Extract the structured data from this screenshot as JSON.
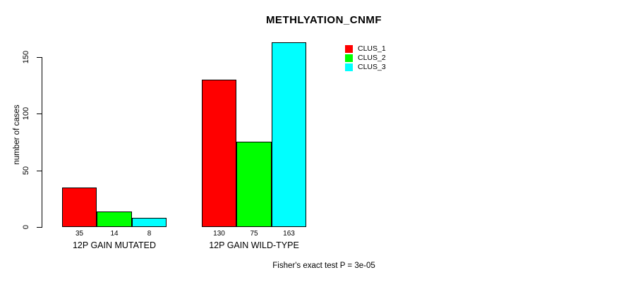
{
  "title": "METHLYATION_CNMF",
  "footnote": "Fisher's exact test P = 3e-05",
  "colors": {
    "clus1": "#FF0000",
    "clus2": "#00FF00",
    "clus3": "#00FFFF",
    "axis": "#000000",
    "background": "#FFFFFF"
  },
  "chart_data": {
    "type": "bar",
    "title": "METHLYATION_CNMF",
    "xlabel": "",
    "ylabel": "number of cases",
    "ylim": [
      0,
      163
    ],
    "yticks": [
      0,
      50,
      100,
      150
    ],
    "grid": false,
    "categories": [
      "12P GAIN MUTATED",
      "12P GAIN WILD-TYPE"
    ],
    "series": [
      {
        "name": "CLUS_1",
        "color": "#FF0000",
        "values": [
          35,
          130
        ]
      },
      {
        "name": "CLUS_2",
        "color": "#00FF00",
        "values": [
          14,
          75
        ]
      },
      {
        "name": "CLUS_3",
        "color": "#00FFFF",
        "values": [
          8,
          163
        ]
      }
    ],
    "bar_value_labels": [
      [
        "35",
        "14",
        "8"
      ],
      [
        "130",
        "75",
        "163"
      ]
    ],
    "legend_position": "top-right",
    "legend_entries": [
      "CLUS_1",
      "CLUS_2",
      "CLUS_3"
    ],
    "annotation": "Fisher's exact test P = 3e-05"
  }
}
